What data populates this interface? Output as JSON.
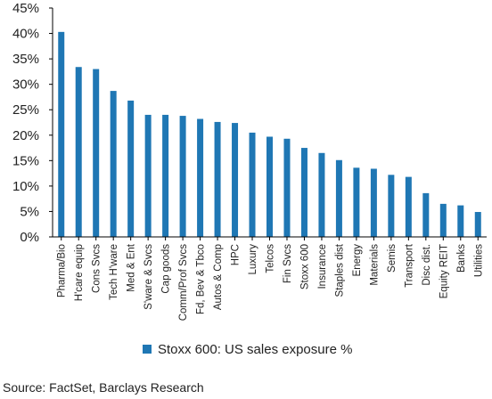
{
  "chart_data": {
    "type": "bar",
    "categories": [
      "Pharma/Bio",
      "H'care equip",
      "Cons Svcs",
      "Tech H'ware",
      "Med & Ent",
      "S'ware & Svcs",
      "Cap goods",
      "Comm/Prof Svcs",
      "Fd, Bev & Tbco",
      "Autos & Comp",
      "HPC",
      "Luxury",
      "Telcos",
      "Fin Svcs",
      "Stoxx 600",
      "Insurance",
      "Staples dist",
      "Energy",
      "Materials",
      "Semis",
      "Transport",
      "Disc dist.",
      "Equity REIT",
      "Banks",
      "Utilities"
    ],
    "series": [
      {
        "name": "Stoxx 600: US sales exposure %",
        "values": [
          40.3,
          33.4,
          33.0,
          28.7,
          26.8,
          24.0,
          24.0,
          23.8,
          23.2,
          22.6,
          22.4,
          20.5,
          19.7,
          19.3,
          17.5,
          16.5,
          15.1,
          13.6,
          13.4,
          12.2,
          11.8,
          8.6,
          6.5,
          6.2,
          4.9
        ],
        "color": "#1f77b4"
      }
    ],
    "ylim": [
      0,
      45
    ],
    "yticks": [
      0,
      5,
      10,
      15,
      20,
      25,
      30,
      35,
      40,
      45
    ],
    "ytick_suffix": "%",
    "grid": false,
    "legend_position": "bottom"
  },
  "source": "Source: FactSet, Barclays Research"
}
